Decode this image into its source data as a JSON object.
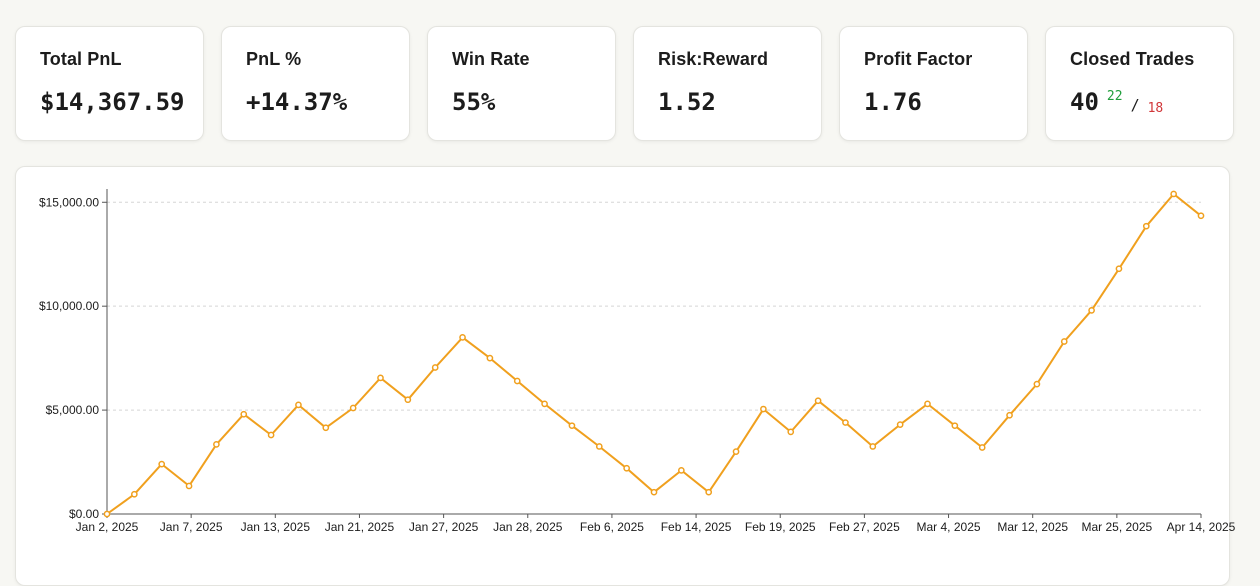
{
  "cards": [
    {
      "label": "Total PnL",
      "value": "$14,367.59"
    },
    {
      "label": "PnL %",
      "value": "+14.37%"
    },
    {
      "label": "Win Rate",
      "value": "55%"
    },
    {
      "label": "Risk:Reward",
      "value": "1.52"
    },
    {
      "label": "Profit Factor",
      "value": "1.76"
    }
  ],
  "closed_trades": {
    "label": "Closed Trades",
    "total": "40",
    "wins": "22",
    "separator": "/",
    "losses": "18"
  },
  "colors": {
    "line": "#f0a01e",
    "wins": "#1f9d3a",
    "losses": "#d1373a",
    "grid": "#d5d5d5"
  },
  "chart_data": {
    "type": "line",
    "title": "",
    "xlabel": "",
    "ylabel": "",
    "ylim": [
      0,
      15350
    ],
    "yticks": [
      0,
      5000,
      10000,
      15000
    ],
    "ytick_labels": [
      "$0.00",
      "$5,000.00",
      "$10,000.00",
      "$15,000.00"
    ],
    "xtick_labels": [
      "Jan 2, 2025",
      "Jan 7, 2025",
      "Jan 13, 2025",
      "Jan 21, 2025",
      "Jan 27, 2025",
      "Jan 28, 2025",
      "Feb 6, 2025",
      "Feb 14, 2025",
      "Feb 19, 2025",
      "Feb 27, 2025",
      "Mar 4, 2025",
      "Mar 12, 2025",
      "Mar 25, 2025",
      "Apr 14, 2025"
    ],
    "grid": true,
    "series": [
      {
        "values": [
          0,
          950,
          2400,
          1350,
          3350,
          4800,
          3800,
          5250,
          4150,
          5100,
          6550,
          5500,
          7050,
          8500,
          7500,
          6400,
          5300,
          4250,
          3250,
          2200,
          1050,
          2100,
          1050,
          3000,
          5050,
          3950,
          5450,
          4400,
          3250,
          4300,
          5300,
          4250,
          3200,
          4750,
          6250,
          8300,
          9800,
          11800,
          13850,
          15400,
          14350
        ]
      }
    ]
  }
}
